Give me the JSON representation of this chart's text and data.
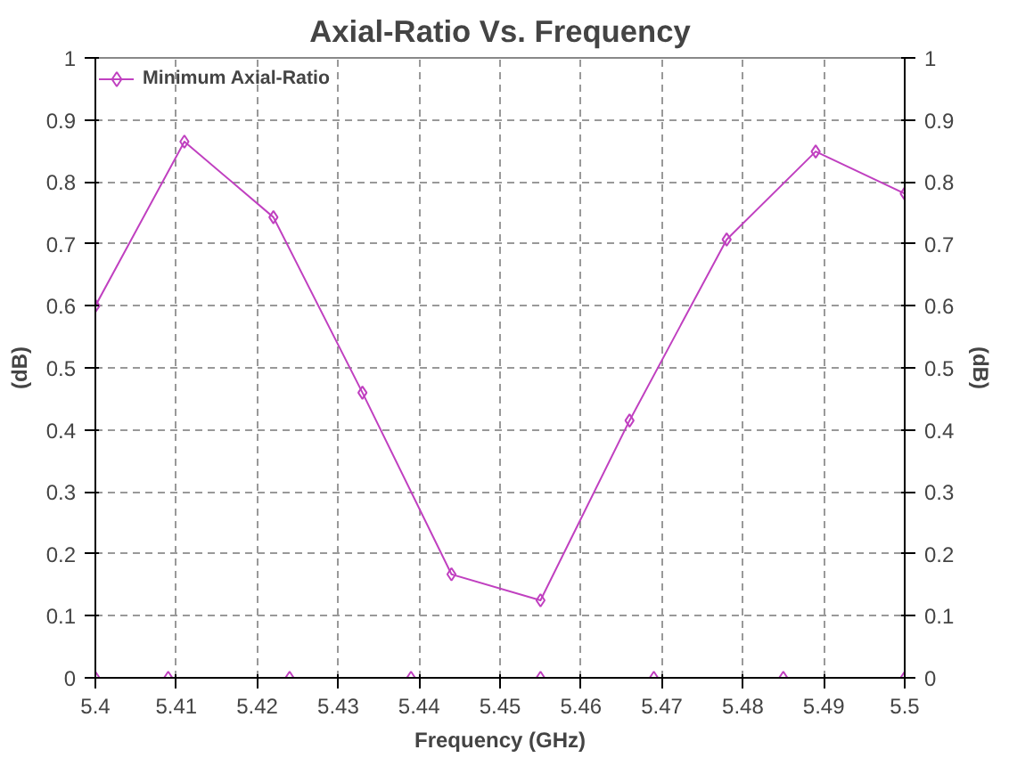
{
  "chart_data": {
    "type": "line",
    "title": "Axial-Ratio Vs. Frequency",
    "xlabel": "Frequency (GHz)",
    "ylabel": "(dB)",
    "y2label": "(dB)",
    "xlim": [
      5.4,
      5.5
    ],
    "xticks": [
      5.4,
      5.41,
      5.42,
      5.43,
      5.44,
      5.45,
      5.46,
      5.47,
      5.48,
      5.49,
      5.5
    ],
    "ylim": [
      0,
      1
    ],
    "yticks": [
      0,
      0.1,
      0.2,
      0.3,
      0.4,
      0.5,
      0.6,
      0.7,
      0.8,
      0.9,
      1
    ],
    "y2lim": [
      0,
      1
    ],
    "y2ticks": [
      0,
      0.1,
      0.2,
      0.3,
      0.4,
      0.5,
      0.6,
      0.7,
      0.8,
      0.9,
      1
    ],
    "grid": true,
    "legend": "top left",
    "marker": "diamond",
    "line_style": "solid",
    "series": [
      {
        "name": "Minimum Axial-Ratio",
        "color": "#c040c0",
        "x": [
          5.4,
          5.411,
          5.422,
          5.433,
          5.444,
          5.455,
          5.466,
          5.478,
          5.489,
          5.5
        ],
        "values": [
          0.6,
          0.865,
          0.743,
          0.46,
          0.167,
          0.125,
          0.415,
          0.707,
          0.849,
          0.781
        ]
      },
      {
        "type": "scatter",
        "color": "#c040c0",
        "x": [
          5.4,
          5.409,
          5.424,
          5.439,
          5.455,
          5.469,
          5.485,
          5.5
        ],
        "values": [
          0,
          0,
          0,
          0,
          0,
          0,
          0,
          0
        ]
      }
    ]
  }
}
